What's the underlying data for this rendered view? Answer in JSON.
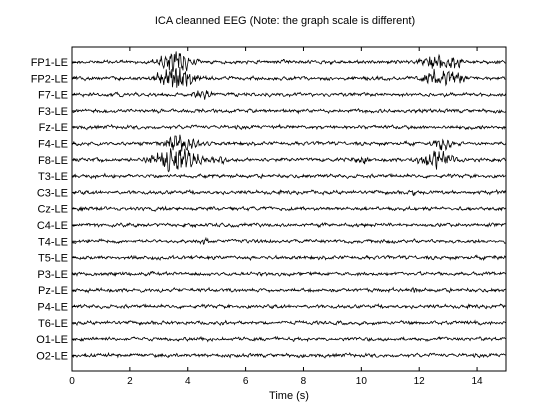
{
  "chart_data": {
    "type": "line",
    "title": "ICA cleanned EEG (Note: the graph scale is different)",
    "xlabel": "Time (s)",
    "ylabel": "",
    "xlim": [
      0,
      15
    ],
    "xticks": [
      0,
      2,
      4,
      6,
      8,
      10,
      12,
      14
    ],
    "grid": false,
    "legend": "none",
    "line_color": "#000000",
    "channels": [
      {
        "name": "FP1-LE",
        "artifacts": [
          {
            "t": 3.6,
            "w": 0.9,
            "amp": 10
          },
          {
            "t": 12.6,
            "w": 0.8,
            "amp": 7
          },
          {
            "t": 13.3,
            "w": 0.5,
            "amp": 5
          }
        ]
      },
      {
        "name": "FP2-LE",
        "artifacts": [
          {
            "t": 3.6,
            "w": 0.9,
            "amp": 12
          },
          {
            "t": 12.6,
            "w": 0.8,
            "amp": 8
          },
          {
            "t": 13.3,
            "w": 0.5,
            "amp": 6
          }
        ]
      },
      {
        "name": "F7-LE",
        "artifacts": [
          {
            "t": 4.5,
            "w": 0.6,
            "amp": 4
          }
        ]
      },
      {
        "name": "F3-LE",
        "artifacts": []
      },
      {
        "name": "Fz-LE",
        "artifacts": []
      },
      {
        "name": "F4-LE",
        "artifacts": [
          {
            "t": 3.8,
            "w": 0.9,
            "amp": 8
          },
          {
            "t": 12.8,
            "w": 0.6,
            "amp": 6
          }
        ]
      },
      {
        "name": "F8-LE",
        "artifacts": [
          {
            "t": 3.6,
            "w": 1.3,
            "amp": 11
          },
          {
            "t": 5.1,
            "w": 0.3,
            "amp": 6
          },
          {
            "t": 10.0,
            "w": 0.4,
            "amp": 5
          },
          {
            "t": 12.6,
            "w": 0.9,
            "amp": 9
          }
        ]
      },
      {
        "name": "T3-LE",
        "artifacts": []
      },
      {
        "name": "C3-LE",
        "artifacts": [
          {
            "t": 11.8,
            "w": 0.1,
            "amp": 4
          }
        ]
      },
      {
        "name": "Cz-LE",
        "artifacts": []
      },
      {
        "name": "C4-LE",
        "artifacts": []
      },
      {
        "name": "T4-LE",
        "artifacts": [
          {
            "t": 4.6,
            "w": 0.2,
            "amp": 3
          }
        ]
      },
      {
        "name": "T5-LE",
        "artifacts": []
      },
      {
        "name": "P3-LE",
        "artifacts": []
      },
      {
        "name": "Pz-LE",
        "artifacts": [
          {
            "t": 11.8,
            "w": 0.1,
            "amp": 4
          }
        ]
      },
      {
        "name": "P4-LE",
        "artifacts": []
      },
      {
        "name": "T6-LE",
        "artifacts": []
      },
      {
        "name": "O1-LE",
        "artifacts": []
      },
      {
        "name": "O2-LE",
        "artifacts": []
      }
    ]
  }
}
